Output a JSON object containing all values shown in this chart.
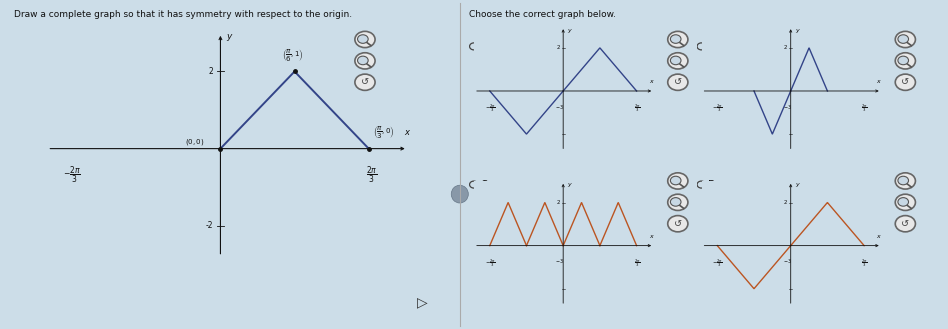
{
  "title_left": "Draw a complete graph so that it has symmetry with respect to the origin.",
  "title_right": "Choose the correct graph below.",
  "bg_color": "#ccdde8",
  "line_blue": "#334488",
  "line_orange": "#bb5522",
  "text_color": "#111111",
  "axis_color": "#111111",
  "divider_color": "#aaaaaa",
  "radio_color": "#444444",
  "two_pi_3": 2.0943951023931953,
  "pi_3": 1.0471975511965976,
  "pi_6": 0.5235987755982988
}
